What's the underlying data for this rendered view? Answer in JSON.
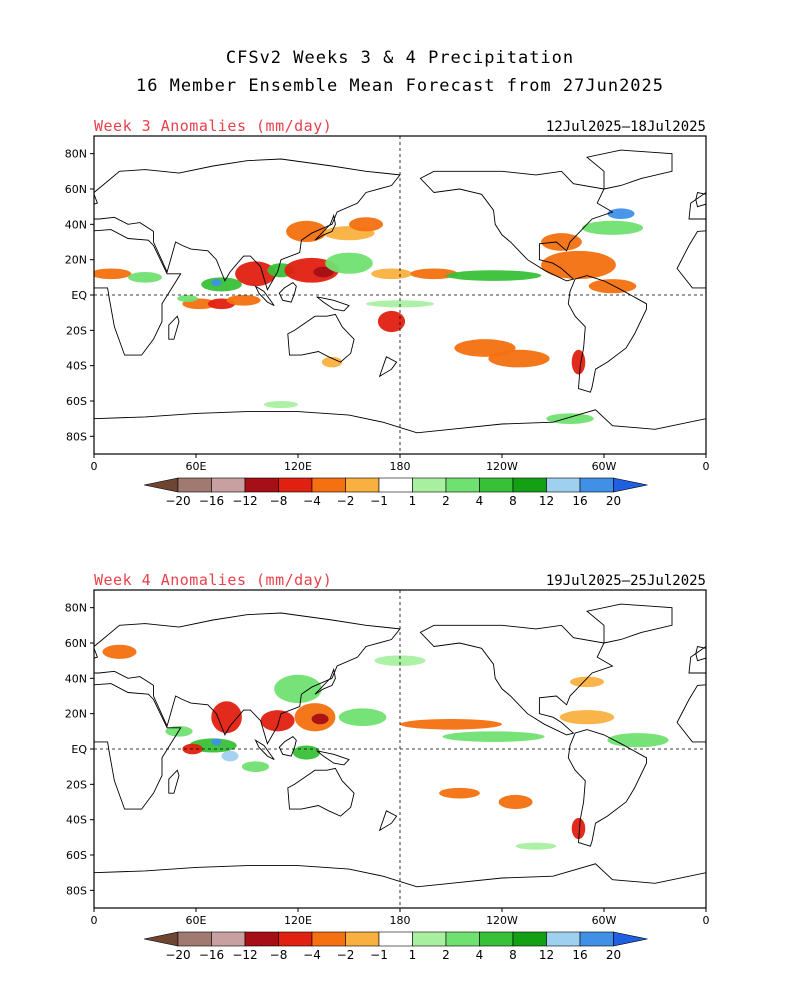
{
  "title_line1": "CFSv2 Weeks 3 & 4 Precipitation",
  "title_line2": "16 Member Ensemble Mean Forecast from 27Jun2025",
  "panels": [
    {
      "title": "Week 3 Anomalies (mm/day)",
      "date_range": "12Jul2025–18Jul2025"
    },
    {
      "title": "Week 4 Anomalies (mm/day)",
      "date_range": "19Jul2025–25Jul2025"
    }
  ],
  "lat_labels": [
    "80N",
    "60N",
    "40N",
    "20N",
    "EQ",
    "20S",
    "40S",
    "60S",
    "80S"
  ],
  "lat_values": [
    80,
    60,
    40,
    20,
    0,
    -20,
    -40,
    -60,
    -80
  ],
  "lon_labels": [
    "0",
    "60E",
    "120E",
    "180",
    "120W",
    "60W",
    "0"
  ],
  "lon_values": [
    0,
    60,
    120,
    180,
    240,
    300,
    360
  ],
  "colorbar": {
    "labels": [
      "−20",
      "−16",
      "−12",
      "−8",
      "−4",
      "−2",
      "−1",
      "1",
      "2",
      "4",
      "8",
      "12",
      "16",
      "20"
    ],
    "colors": [
      "#6e4530",
      "#a07a70",
      "#c8a0a0",
      "#a50f15",
      "#e02010",
      "#f47010",
      "#f9b040",
      "#ffffff",
      "#a8f0a0",
      "#70e070",
      "#38c038",
      "#14a014",
      "#a0d0f0",
      "#4090e8",
      "#2060e0"
    ]
  },
  "colors": {
    "wet_light": "#a8f0a0",
    "wet_mid": "#70e070",
    "wet_strong": "#38c038",
    "wet_max": "#14a014",
    "dry_light": "#f9b040",
    "dry_mid": "#f47010",
    "dry_strong": "#e02010",
    "dry_max": "#a50f15",
    "blue_light": "#a0d0f0",
    "blue_dark": "#4090e8"
  },
  "week3_blobs": [
    {
      "lon": 62,
      "lat": -5,
      "rx": 10,
      "ry": 3,
      "c": "dry_mid"
    },
    {
      "lon": 75,
      "lat": -5,
      "rx": 8,
      "ry": 3,
      "c": "dry_strong"
    },
    {
      "lon": 88,
      "lat": -3,
      "rx": 10,
      "ry": 3,
      "c": "dry_mid"
    },
    {
      "lon": 75,
      "lat": 6,
      "rx": 12,
      "ry": 4,
      "c": "wet_strong"
    },
    {
      "lon": 72,
      "lat": 7,
      "rx": 3,
      "ry": 2,
      "c": "blue_dark"
    },
    {
      "lon": 95,
      "lat": 12,
      "rx": 12,
      "ry": 7,
      "c": "dry_strong"
    },
    {
      "lon": 110,
      "lat": 14,
      "rx": 8,
      "ry": 4,
      "c": "wet_strong"
    },
    {
      "lon": 128,
      "lat": 14,
      "rx": 16,
      "ry": 7,
      "c": "dry_strong"
    },
    {
      "lon": 135,
      "lat": 13,
      "rx": 6,
      "ry": 3,
      "c": "dry_max"
    },
    {
      "lon": 150,
      "lat": 18,
      "rx": 14,
      "ry": 6,
      "c": "wet_mid"
    },
    {
      "lon": 125,
      "lat": 36,
      "rx": 12,
      "ry": 6,
      "c": "dry_mid"
    },
    {
      "lon": 150,
      "lat": 35,
      "rx": 15,
      "ry": 4,
      "c": "dry_light"
    },
    {
      "lon": 160,
      "lat": 40,
      "rx": 10,
      "ry": 4,
      "c": "dry_mid"
    },
    {
      "lon": 175,
      "lat": 12,
      "rx": 12,
      "ry": 3,
      "c": "dry_light"
    },
    {
      "lon": 200,
      "lat": 12,
      "rx": 14,
      "ry": 3,
      "c": "dry_mid"
    },
    {
      "lon": 235,
      "lat": 11,
      "rx": 28,
      "ry": 3,
      "c": "wet_strong"
    },
    {
      "lon": 10,
      "lat": 12,
      "rx": 12,
      "ry": 3,
      "c": "dry_mid"
    },
    {
      "lon": 30,
      "lat": 10,
      "rx": 10,
      "ry": 3,
      "c": "wet_mid"
    },
    {
      "lon": 285,
      "lat": 17,
      "rx": 22,
      "ry": 8,
      "c": "dry_mid"
    },
    {
      "lon": 305,
      "lat": 5,
      "rx": 14,
      "ry": 4,
      "c": "dry_mid"
    },
    {
      "lon": 275,
      "lat": 30,
      "rx": 12,
      "ry": 5,
      "c": "dry_mid"
    },
    {
      "lon": 305,
      "lat": 38,
      "rx": 18,
      "ry": 4,
      "c": "wet_mid"
    },
    {
      "lon": 310,
      "lat": 46,
      "rx": 8,
      "ry": 3,
      "c": "blue_dark"
    },
    {
      "lon": 175,
      "lat": -15,
      "rx": 8,
      "ry": 6,
      "c": "dry_strong"
    },
    {
      "lon": 230,
      "lat": -30,
      "rx": 18,
      "ry": 5,
      "c": "dry_mid"
    },
    {
      "lon": 250,
      "lat": -36,
      "rx": 18,
      "ry": 5,
      "c": "dry_mid"
    },
    {
      "lon": 285,
      "lat": -38,
      "rx": 4,
      "ry": 7,
      "c": "dry_strong"
    },
    {
      "lon": 140,
      "lat": -38,
      "rx": 6,
      "ry": 3,
      "c": "dry_light"
    },
    {
      "lon": 280,
      "lat": -70,
      "rx": 14,
      "ry": 3,
      "c": "wet_mid"
    },
    {
      "lon": 110,
      "lat": -62,
      "rx": 10,
      "ry": 2,
      "c": "wet_light"
    },
    {
      "lon": 55,
      "lat": -2,
      "rx": 6,
      "ry": 2,
      "c": "wet_mid"
    },
    {
      "lon": 180,
      "lat": -5,
      "rx": 20,
      "ry": 2,
      "c": "wet_light"
    }
  ],
  "week4_blobs": [
    {
      "lon": 70,
      "lat": 2,
      "rx": 14,
      "ry": 4,
      "c": "wet_strong"
    },
    {
      "lon": 72,
      "lat": 4,
      "rx": 3,
      "ry": 2,
      "c": "blue_dark"
    },
    {
      "lon": 80,
      "lat": -4,
      "rx": 5,
      "ry": 3,
      "c": "blue_light"
    },
    {
      "lon": 58,
      "lat": 0,
      "rx": 6,
      "ry": 3,
      "c": "dry_strong"
    },
    {
      "lon": 78,
      "lat": 18,
      "rx": 9,
      "ry": 9,
      "c": "dry_strong"
    },
    {
      "lon": 108,
      "lat": 16,
      "rx": 10,
      "ry": 6,
      "c": "dry_strong"
    },
    {
      "lon": 130,
      "lat": 18,
      "rx": 12,
      "ry": 8,
      "c": "dry_mid"
    },
    {
      "lon": 133,
      "lat": 17,
      "rx": 5,
      "ry": 3,
      "c": "dry_max"
    },
    {
      "lon": 120,
      "lat": 34,
      "rx": 14,
      "ry": 8,
      "c": "wet_mid"
    },
    {
      "lon": 158,
      "lat": 18,
      "rx": 14,
      "ry": 5,
      "c": "wet_mid"
    },
    {
      "lon": 210,
      "lat": 14,
      "rx": 30,
      "ry": 3,
      "c": "dry_mid"
    },
    {
      "lon": 235,
      "lat": 7,
      "rx": 30,
      "ry": 3,
      "c": "wet_mid"
    },
    {
      "lon": 320,
      "lat": 5,
      "rx": 18,
      "ry": 4,
      "c": "wet_mid"
    },
    {
      "lon": 290,
      "lat": 18,
      "rx": 16,
      "ry": 4,
      "c": "dry_light"
    },
    {
      "lon": 290,
      "lat": 38,
      "rx": 10,
      "ry": 3,
      "c": "dry_light"
    },
    {
      "lon": 215,
      "lat": -25,
      "rx": 12,
      "ry": 3,
      "c": "dry_mid"
    },
    {
      "lon": 248,
      "lat": -30,
      "rx": 10,
      "ry": 4,
      "c": "dry_mid"
    },
    {
      "lon": 285,
      "lat": -45,
      "rx": 4,
      "ry": 6,
      "c": "dry_strong"
    },
    {
      "lon": 15,
      "lat": 55,
      "rx": 10,
      "ry": 4,
      "c": "dry_mid"
    },
    {
      "lon": 50,
      "lat": 10,
      "rx": 8,
      "ry": 3,
      "c": "wet_mid"
    },
    {
      "lon": 95,
      "lat": -10,
      "rx": 8,
      "ry": 3,
      "c": "wet_mid"
    },
    {
      "lon": 125,
      "lat": -2,
      "rx": 8,
      "ry": 4,
      "c": "wet_strong"
    },
    {
      "lon": 260,
      "lat": -55,
      "rx": 12,
      "ry": 2,
      "c": "wet_light"
    },
    {
      "lon": 180,
      "lat": 50,
      "rx": 15,
      "ry": 3,
      "c": "wet_light"
    }
  ]
}
